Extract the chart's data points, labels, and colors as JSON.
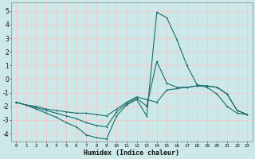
{
  "xlabel": "Humidex (Indice chaleur)",
  "bg_color": "#cce8e8",
  "grid_color": "#f5c8c8",
  "line_color": "#1a6b6b",
  "xlim": [
    -0.5,
    23.5
  ],
  "ylim": [
    -4.6,
    5.6
  ],
  "xticks": [
    0,
    1,
    2,
    3,
    4,
    5,
    6,
    7,
    8,
    9,
    10,
    11,
    12,
    13,
    14,
    15,
    16,
    17,
    18,
    19,
    20,
    21,
    22,
    23
  ],
  "yticks": [
    -4,
    -3,
    -2,
    -1,
    0,
    1,
    2,
    3,
    4,
    5
  ],
  "line1_x": [
    0,
    1,
    2,
    3,
    4,
    5,
    6,
    7,
    8,
    9,
    10,
    11,
    12,
    13,
    14,
    15,
    16,
    17,
    18,
    19,
    20,
    21,
    22,
    23
  ],
  "line1_y": [
    -1.7,
    -1.9,
    -2.2,
    -2.5,
    -2.8,
    -3.2,
    -3.5,
    -4.1,
    -4.3,
    -4.4,
    -2.7,
    -1.9,
    -1.5,
    -2.7,
    4.9,
    4.5,
    2.9,
    1.0,
    -0.4,
    -0.6,
    -1.1,
    -2.0,
    -2.5,
    -2.6
  ],
  "line2_x": [
    0,
    1,
    2,
    3,
    4,
    5,
    6,
    7,
    8,
    9,
    10,
    11,
    12,
    13,
    14,
    15,
    16,
    17,
    18,
    19,
    20,
    21,
    22,
    23
  ],
  "line2_y": [
    -1.7,
    -1.9,
    -2.0,
    -2.2,
    -2.3,
    -2.4,
    -2.5,
    -2.5,
    -2.6,
    -2.7,
    -2.2,
    -1.7,
    -1.3,
    -1.5,
    -1.7,
    -0.8,
    -0.7,
    -0.6,
    -0.5,
    -0.5,
    -0.6,
    -1.1,
    -2.3,
    -2.6
  ],
  "line3_x": [
    0,
    1,
    2,
    3,
    4,
    5,
    6,
    7,
    8,
    9,
    10,
    11,
    12,
    13,
    14,
    15,
    16,
    17,
    18,
    19,
    20,
    21,
    22,
    23
  ],
  "line3_y": [
    -1.7,
    -1.9,
    -2.1,
    -2.3,
    -2.5,
    -2.7,
    -2.9,
    -3.2,
    -3.4,
    -3.5,
    -2.4,
    -1.8,
    -1.4,
    -2.0,
    1.3,
    -0.3,
    -0.6,
    -0.6,
    -0.5,
    -0.5,
    -0.6,
    -1.1,
    -2.3,
    -2.6
  ]
}
